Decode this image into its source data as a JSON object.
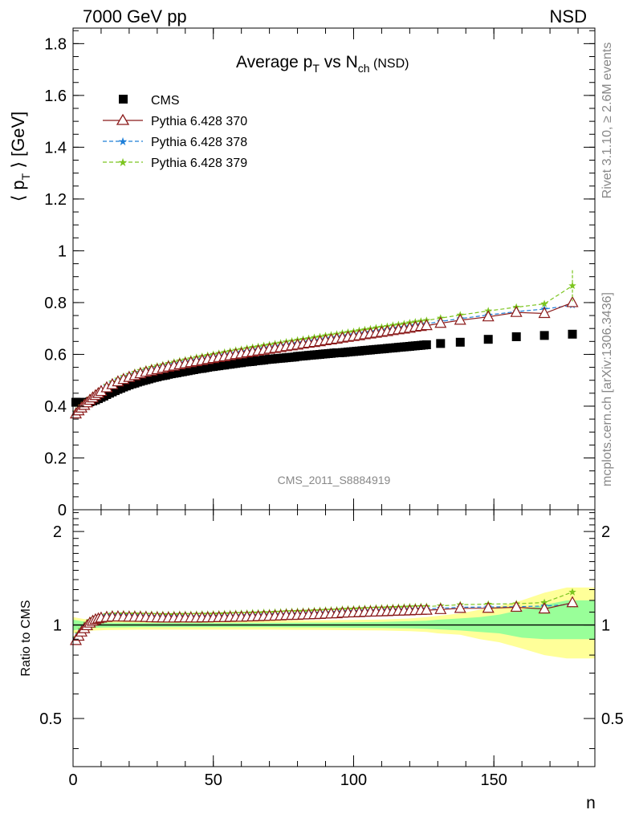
{
  "header": {
    "energy_label": "7000 GeV pp",
    "process_label": "NSD",
    "side_label_1": "Rivet 3.1.10, ≥ 2.6M events",
    "side_label_2": "mcplots.cern.ch [arXiv:1306.3436]",
    "analysis_id": "CMS_2011_S8884919"
  },
  "chart_data": {
    "type": "scatter",
    "title": "Average p_T vs N_ch (NSD)",
    "title_parts": {
      "main": "Average p",
      "sub1": "T",
      "mid": " vs N",
      "sub2": "ch",
      "tail": " (NSD)"
    },
    "xlabel": "n",
    "ylabel": "⟨ p_T ⟩ [GeV]",
    "ylabel_parts": {
      "pre": "⟨ p",
      "sub": "T",
      "post": " ⟩ [GeV]"
    },
    "ratio_ylabel": "Ratio to CMS",
    "xlim": [
      0,
      186
    ],
    "ylim": [
      0,
      1.86
    ],
    "ratio_ylim": [
      0.35,
      2.35
    ],
    "ratio_log": true,
    "x_ticks": [
      "0",
      "50",
      "100",
      "150"
    ],
    "y_ticks": [
      "0",
      "0.2",
      "0.4",
      "0.6",
      "0.8",
      "1",
      "1.2",
      "1.4",
      "1.6",
      "1.8"
    ],
    "ratio_ticks": [
      "0.5",
      "1",
      "2"
    ],
    "legend_position": "top-left",
    "series": [
      {
        "name": "CMS",
        "color": "#000000",
        "marker": "square"
      },
      {
        "name": "Pythia 6.428 370",
        "color": "#8b1a1a",
        "marker": "open-triangle",
        "line": "solid"
      },
      {
        "name": "Pythia 6.428 378",
        "color": "#1e7fd8",
        "marker": "star",
        "line": "dashed"
      },
      {
        "name": "Pythia 6.428 379",
        "color": "#7cc520",
        "marker": "star",
        "line": "dashed"
      }
    ],
    "cms_x": [
      1,
      2,
      3,
      4,
      5,
      6,
      7,
      8,
      9,
      10,
      11,
      12,
      13,
      14,
      15,
      16,
      17,
      18,
      19,
      20,
      21,
      22,
      23,
      24,
      25,
      26,
      27,
      28,
      29,
      30,
      31,
      32,
      33,
      34,
      35,
      36,
      37,
      38,
      39,
      40,
      41,
      42,
      43,
      44,
      45,
      46,
      47,
      48,
      49,
      50,
      51,
      52,
      53,
      54,
      55,
      56,
      57,
      58,
      59,
      60,
      61,
      62,
      63,
      64,
      65,
      66,
      67,
      68,
      69,
      70,
      71,
      72,
      73,
      74,
      75,
      76,
      77,
      78,
      79,
      80,
      81,
      82,
      83,
      84,
      85,
      86,
      87,
      88,
      89,
      90,
      91,
      92,
      93,
      94,
      95,
      96,
      97,
      98,
      99,
      100,
      101,
      102,
      103,
      104,
      105,
      106,
      107,
      108,
      109,
      110,
      111,
      112,
      113,
      114,
      115,
      116,
      117,
      118,
      119,
      120,
      121,
      122,
      123,
      124,
      125,
      126,
      131,
      138,
      148,
      158,
      168,
      178
    ],
    "cms_y": [
      0.415,
      0.415,
      0.414,
      0.414,
      0.415,
      0.417,
      0.42,
      0.424,
      0.429,
      0.434,
      0.439,
      0.445,
      0.45,
      0.455,
      0.46,
      0.465,
      0.469,
      0.474,
      0.478,
      0.482,
      0.486,
      0.489,
      0.493,
      0.496,
      0.499,
      0.502,
      0.505,
      0.508,
      0.511,
      0.513,
      0.516,
      0.518,
      0.52,
      0.523,
      0.525,
      0.527,
      0.529,
      0.531,
      0.533,
      0.535,
      0.537,
      0.539,
      0.541,
      0.543,
      0.545,
      0.546,
      0.548,
      0.55,
      0.552,
      0.553,
      0.555,
      0.556,
      0.558,
      0.559,
      0.561,
      0.562,
      0.564,
      0.565,
      0.567,
      0.568,
      0.57,
      0.571,
      0.572,
      0.573,
      0.575,
      0.576,
      0.577,
      0.578,
      0.58,
      0.581,
      0.582,
      0.583,
      0.584,
      0.585,
      0.586,
      0.587,
      0.588,
      0.589,
      0.59,
      0.592,
      0.593,
      0.594,
      0.595,
      0.596,
      0.597,
      0.598,
      0.599,
      0.6,
      0.601,
      0.602,
      0.603,
      0.604,
      0.605,
      0.606,
      0.606,
      0.607,
      0.608,
      0.609,
      0.61,
      0.611,
      0.612,
      0.613,
      0.614,
      0.615,
      0.616,
      0.617,
      0.618,
      0.619,
      0.62,
      0.621,
      0.622,
      0.623,
      0.624,
      0.625,
      0.626,
      0.627,
      0.628,
      0.629,
      0.63,
      0.631,
      0.632,
      0.633,
      0.634,
      0.635,
      0.636,
      0.637,
      0.642,
      0.647,
      0.658,
      0.668,
      0.673,
      0.678
    ],
    "mc_x": [
      1,
      2,
      3,
      4,
      5,
      6,
      7,
      8,
      9,
      10,
      12,
      14,
      16,
      18,
      20,
      22,
      24,
      26,
      28,
      30,
      32,
      34,
      36,
      38,
      40,
      42,
      44,
      46,
      48,
      50,
      52,
      54,
      56,
      58,
      60,
      62,
      64,
      66,
      68,
      70,
      72,
      74,
      76,
      78,
      80,
      82,
      84,
      86,
      88,
      90,
      92,
      94,
      96,
      98,
      100,
      102,
      104,
      106,
      108,
      110,
      112,
      114,
      116,
      118,
      120,
      122,
      124,
      126,
      131,
      138,
      148,
      158,
      168,
      178
    ],
    "p370_y": [
      0.37,
      0.382,
      0.393,
      0.403,
      0.413,
      0.423,
      0.432,
      0.441,
      0.449,
      0.457,
      0.471,
      0.483,
      0.494,
      0.503,
      0.511,
      0.518,
      0.525,
      0.531,
      0.536,
      0.541,
      0.546,
      0.551,
      0.555,
      0.56,
      0.564,
      0.568,
      0.572,
      0.576,
      0.58,
      0.584,
      0.588,
      0.591,
      0.595,
      0.599,
      0.602,
      0.606,
      0.609,
      0.613,
      0.616,
      0.62,
      0.623,
      0.626,
      0.63,
      0.633,
      0.636,
      0.64,
      0.643,
      0.646,
      0.649,
      0.653,
      0.656,
      0.659,
      0.663,
      0.666,
      0.669,
      0.672,
      0.676,
      0.679,
      0.682,
      0.685,
      0.688,
      0.692,
      0.695,
      0.698,
      0.701,
      0.705,
      0.708,
      0.711,
      0.72,
      0.732,
      0.745,
      0.762,
      0.758,
      0.8
    ],
    "p378_y": [
      0.375,
      0.387,
      0.398,
      0.408,
      0.418,
      0.428,
      0.437,
      0.446,
      0.454,
      0.462,
      0.477,
      0.489,
      0.5,
      0.509,
      0.517,
      0.524,
      0.531,
      0.537,
      0.542,
      0.547,
      0.552,
      0.557,
      0.562,
      0.566,
      0.57,
      0.574,
      0.578,
      0.582,
      0.586,
      0.59,
      0.594,
      0.598,
      0.601,
      0.605,
      0.609,
      0.612,
      0.616,
      0.619,
      0.623,
      0.626,
      0.63,
      0.633,
      0.636,
      0.64,
      0.643,
      0.646,
      0.65,
      0.653,
      0.656,
      0.66,
      0.663,
      0.666,
      0.67,
      0.673,
      0.676,
      0.679,
      0.683,
      0.686,
      0.689,
      0.692,
      0.696,
      0.699,
      0.702,
      0.705,
      0.709,
      0.712,
      0.715,
      0.718,
      0.727,
      0.738,
      0.752,
      0.765,
      0.775,
      0.79
    ],
    "p379_y": [
      0.378,
      0.39,
      0.401,
      0.411,
      0.421,
      0.431,
      0.44,
      0.449,
      0.457,
      0.465,
      0.481,
      0.494,
      0.505,
      0.515,
      0.523,
      0.531,
      0.538,
      0.544,
      0.55,
      0.555,
      0.56,
      0.565,
      0.57,
      0.575,
      0.579,
      0.583,
      0.588,
      0.592,
      0.596,
      0.6,
      0.604,
      0.608,
      0.612,
      0.616,
      0.619,
      0.623,
      0.627,
      0.63,
      0.634,
      0.637,
      0.641,
      0.644,
      0.648,
      0.651,
      0.655,
      0.658,
      0.661,
      0.665,
      0.668,
      0.672,
      0.675,
      0.678,
      0.682,
      0.685,
      0.688,
      0.692,
      0.695,
      0.698,
      0.702,
      0.705,
      0.708,
      0.712,
      0.715,
      0.718,
      0.722,
      0.725,
      0.728,
      0.731,
      0.74,
      0.752,
      0.768,
      0.782,
      0.795,
      0.865
    ],
    "band_x": [
      0,
      4,
      8,
      12,
      18,
      24,
      30,
      40,
      50,
      60,
      70,
      80,
      90,
      100,
      110,
      120,
      126,
      130,
      138,
      145,
      152,
      160,
      168,
      176,
      186
    ],
    "band_green_lo": [
      0.96,
      0.975,
      0.98,
      0.982,
      0.983,
      0.984,
      0.984,
      0.984,
      0.984,
      0.984,
      0.984,
      0.983,
      0.982,
      0.98,
      0.978,
      0.975,
      0.972,
      0.968,
      0.96,
      0.95,
      0.94,
      0.91,
      0.9,
      0.9,
      0.9
    ],
    "band_green_hi": [
      1.04,
      1.025,
      1.02,
      1.018,
      1.017,
      1.016,
      1.016,
      1.016,
      1.016,
      1.016,
      1.016,
      1.017,
      1.018,
      1.02,
      1.023,
      1.028,
      1.032,
      1.04,
      1.05,
      1.06,
      1.08,
      1.12,
      1.16,
      1.2,
      1.2
    ],
    "band_yellow_lo": [
      0.94,
      0.955,
      0.96,
      0.963,
      0.965,
      0.966,
      0.966,
      0.966,
      0.966,
      0.966,
      0.966,
      0.965,
      0.964,
      0.962,
      0.96,
      0.955,
      0.95,
      0.94,
      0.93,
      0.9,
      0.88,
      0.84,
      0.8,
      0.78,
      0.78
    ],
    "band_yellow_hi": [
      1.06,
      1.045,
      1.04,
      1.037,
      1.035,
      1.034,
      1.034,
      1.034,
      1.034,
      1.034,
      1.034,
      1.035,
      1.036,
      1.038,
      1.042,
      1.05,
      1.06,
      1.07,
      1.09,
      1.12,
      1.15,
      1.2,
      1.27,
      1.32,
      1.32
    ]
  }
}
